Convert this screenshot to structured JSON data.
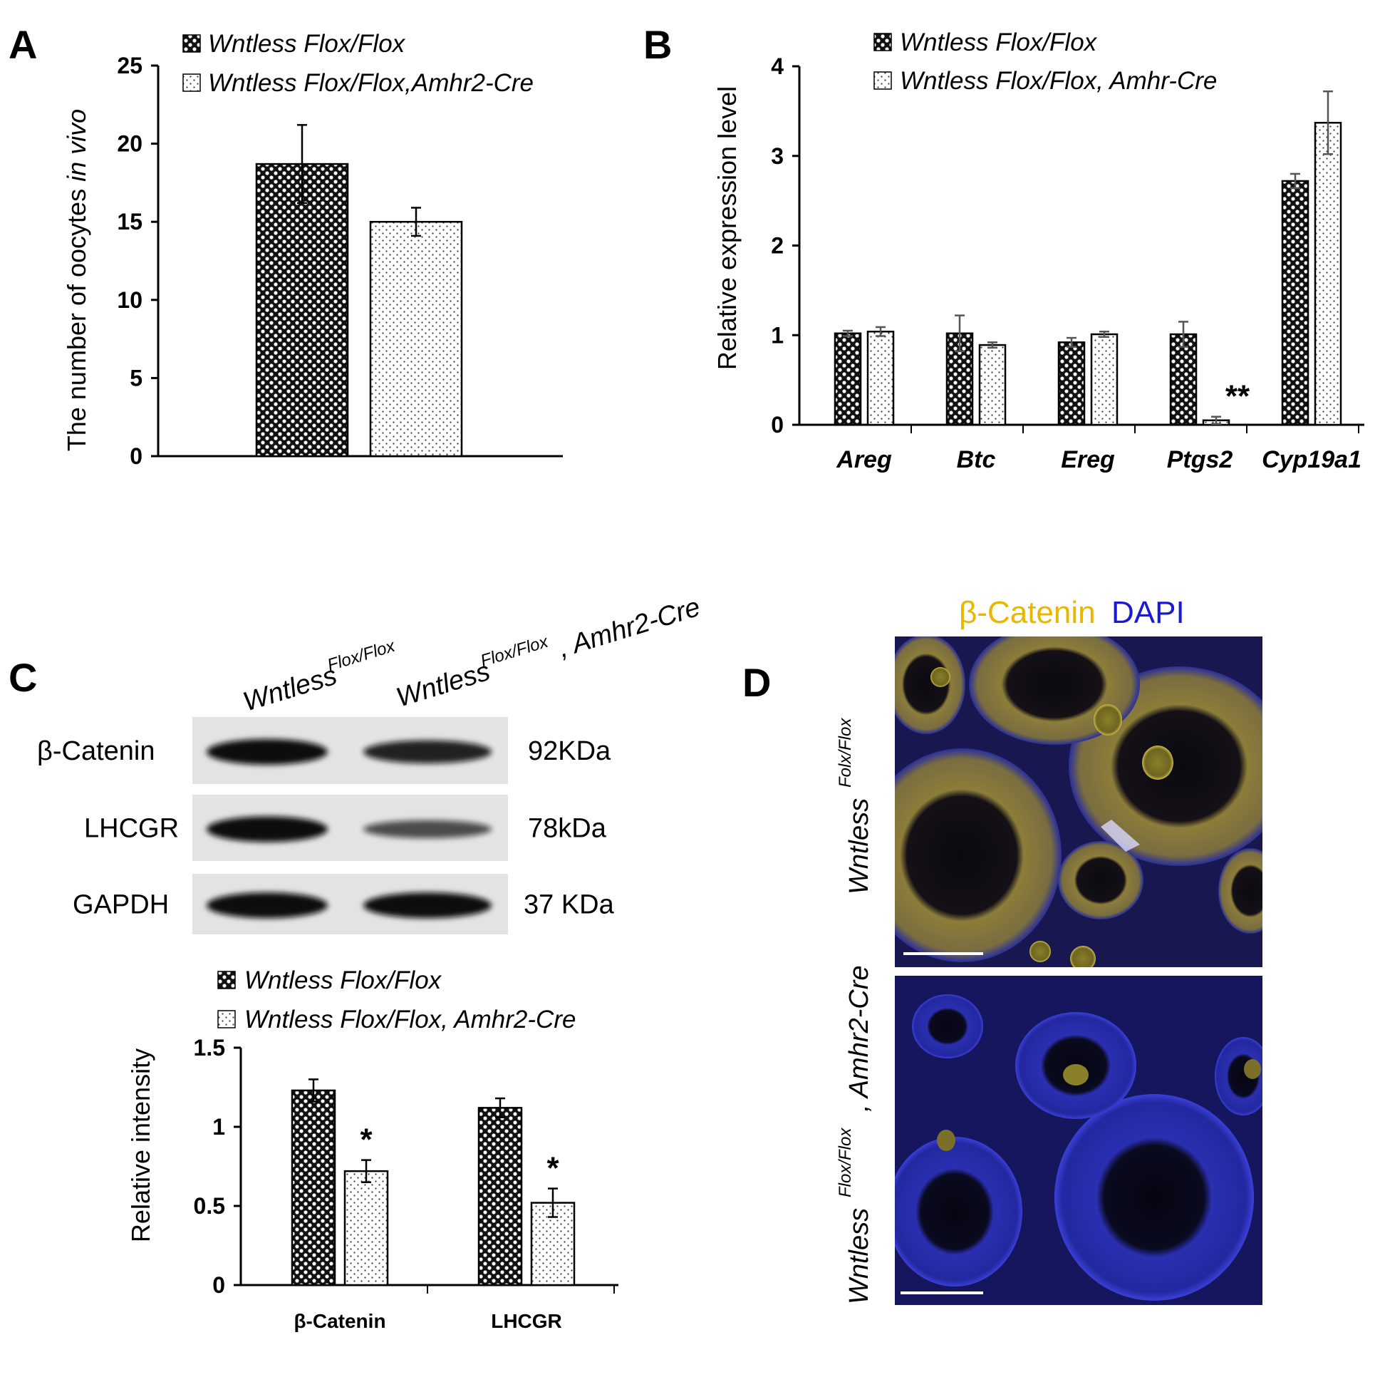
{
  "colors": {
    "bar_flox": "#2a2a2a",
    "bar_cre": "#ffffff",
    "dapi": "#1a1ad0",
    "catenin": "#e8b800"
  },
  "panel_labels": [
    "A",
    "B",
    "C",
    "D"
  ],
  "legends": {
    "a": [
      "Wntless Flox/Flox",
      "Wntless Flox/Flox,Amhr2-Cre"
    ],
    "b": [
      "Wntless Flox/Flox",
      "Wntless Flox/Flox, Amhr-Cre"
    ],
    "c": [
      "Wntless Flox/Flox",
      "Wntless Flox/Flox, Amhr2-Cre"
    ]
  },
  "chart_data": [
    {
      "panel": "A",
      "type": "bar",
      "ylabel_prefix": "The number of oocytes ",
      "ylabel_italic": "in vivo",
      "ylim": [
        0,
        25
      ],
      "yticks": [
        "0",
        "5",
        "10",
        "15",
        "20",
        "25"
      ],
      "categories": [
        ""
      ],
      "series": [
        {
          "name": "Wntless Flox/Flox",
          "values": [
            18.7
          ],
          "errors": [
            2.5
          ]
        },
        {
          "name": "Wntless Flox/Flox,Amhr2-Cre",
          "values": [
            15.0
          ],
          "errors": [
            0.9
          ]
        }
      ]
    },
    {
      "panel": "B",
      "type": "bar",
      "ylabel": "Relative expression level",
      "ylim": [
        0,
        4
      ],
      "yticks": [
        "0",
        "1",
        "2",
        "3",
        "4"
      ],
      "categories": [
        "Areg",
        "Btc",
        "Ereg",
        "Ptgs2",
        "Cyp19a1"
      ],
      "series": [
        {
          "name": "Wntless Flox/Flox",
          "values": [
            1.02,
            1.02,
            0.92,
            1.01,
            2.72
          ],
          "errors": [
            0.03,
            0.2,
            0.05,
            0.14,
            0.08
          ]
        },
        {
          "name": "Wntless Flox/Flox, Amhr-Cre",
          "values": [
            1.04,
            0.89,
            1.01,
            0.05,
            3.37
          ],
          "errors": [
            0.05,
            0.03,
            0.03,
            0.04,
            0.35
          ]
        }
      ],
      "annotations": [
        "",
        "",
        "",
        "**",
        ""
      ]
    },
    {
      "panel": "C",
      "type": "bar",
      "ylabel": "Relative intensity",
      "ylim": [
        0,
        1.5
      ],
      "yticks": [
        "0",
        "0.5",
        "1",
        "1.5"
      ],
      "categories": [
        "β-Catenin",
        "LHCGR"
      ],
      "series": [
        {
          "name": "Wntless Flox/Flox",
          "values": [
            1.23,
            1.12
          ],
          "errors": [
            0.07,
            0.06
          ]
        },
        {
          "name": "Wntless Flox/Flox, Amhr2-Cre",
          "values": [
            0.72,
            0.52
          ],
          "errors": [
            0.07,
            0.09
          ]
        }
      ],
      "annotations": [
        "*",
        "*"
      ]
    }
  ],
  "blot": {
    "lane_labels": [
      {
        "main": "Wntless",
        "sup": "Flox/Flox",
        "suffix": ""
      },
      {
        "main": "Wntless",
        "sup": "Flox/Flox",
        "suffix": ", Amhr2-Cre"
      }
    ],
    "rows": [
      {
        "name": "β-Catenin",
        "size": "92KDa",
        "band_strength": [
          1.0,
          0.85
        ]
      },
      {
        "name": "LHCGR",
        "size": "78kDa",
        "band_strength": [
          1.0,
          0.55
        ]
      },
      {
        "name": "GAPDH",
        "size": "37 KDa",
        "band_strength": [
          1.0,
          1.0
        ]
      }
    ]
  },
  "if_panel": {
    "stain_catenin": "β-Catenin",
    "stain_dapi": "DAPI",
    "row_labels": [
      {
        "main": "Wntless",
        "sup": "Folx/Flox",
        "suffix": ""
      },
      {
        "main": "Wntless",
        "sup": "Flox/Flox",
        "suffix": ", Amhr2-Cre"
      }
    ]
  }
}
